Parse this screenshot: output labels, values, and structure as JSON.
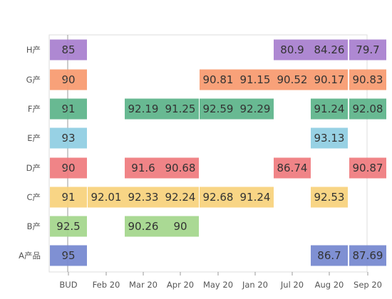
{
  "chart_data": {
    "type": "heatmap",
    "title": "",
    "xlabel": "",
    "ylabel": "",
    "x_categories": [
      "BUD",
      "Feb 20",
      "Mar 20",
      "Apr 20",
      "May 20",
      "Jan 20",
      "Jul 20",
      "Aug 20",
      "Sep 20"
    ],
    "y_categories": [
      "H产",
      "G产",
      "F产",
      "E产",
      "D产",
      "C产",
      "B产",
      "A产品"
    ],
    "row_colors": [
      "#a87fcf",
      "#f79a6f",
      "#5cb48a",
      "#8fcde2",
      "#ef7b7e",
      "#f7d27c",
      "#a4d68c",
      "#7588d0"
    ],
    "series": [
      {
        "row": "H产",
        "cells": [
          {
            "x": "BUD",
            "value": 85
          },
          {
            "x": "Jul 20",
            "value": 80.9
          },
          {
            "x": "Aug 20",
            "value": 84.26
          },
          {
            "x": "Sep 20",
            "value": 79.7
          }
        ]
      },
      {
        "row": "G产",
        "cells": [
          {
            "x": "BUD",
            "value": 90
          },
          {
            "x": "May 20",
            "value": 90.81
          },
          {
            "x": "Jan 20",
            "value": 91.15
          },
          {
            "x": "Jul 20",
            "value": 90.52
          },
          {
            "x": "Aug 20",
            "value": 90.17
          },
          {
            "x": "Sep 20",
            "value": 90.83
          }
        ]
      },
      {
        "row": "F产",
        "cells": [
          {
            "x": "BUD",
            "value": 91
          },
          {
            "x": "Mar 20",
            "value": 92.19
          },
          {
            "x": "Apr 20",
            "value": 91.25
          },
          {
            "x": "May 20",
            "value": 92.59
          },
          {
            "x": "Jan 20",
            "value": 92.29
          },
          {
            "x": "Aug 20",
            "value": 91.24
          },
          {
            "x": "Sep 20",
            "value": 92.08
          }
        ]
      },
      {
        "row": "E产",
        "cells": [
          {
            "x": "BUD",
            "value": 93
          },
          {
            "x": "Aug 20",
            "value": 93.13
          }
        ]
      },
      {
        "row": "D产",
        "cells": [
          {
            "x": "BUD",
            "value": 90
          },
          {
            "x": "Mar 20",
            "value": 91.6
          },
          {
            "x": "Apr 20",
            "value": 90.68
          },
          {
            "x": "Jul 20",
            "value": 86.74
          },
          {
            "x": "Sep 20",
            "value": 90.87
          }
        ]
      },
      {
        "row": "C产",
        "cells": [
          {
            "x": "BUD",
            "value": 91
          },
          {
            "x": "Feb 20",
            "value": 92.01
          },
          {
            "x": "Mar 20",
            "value": 92.33
          },
          {
            "x": "Apr 20",
            "value": 92.24
          },
          {
            "x": "May 20",
            "value": 92.68
          },
          {
            "x": "Jan 20",
            "value": 91.24
          },
          {
            "x": "Aug 20",
            "value": 92.53
          }
        ]
      },
      {
        "row": "B产",
        "cells": [
          {
            "x": "BUD",
            "value": 92.5
          },
          {
            "x": "Mar 20",
            "value": 90.26
          },
          {
            "x": "Apr 20",
            "value": 90
          }
        ]
      },
      {
        "row": "A产品",
        "cells": [
          {
            "x": "BUD",
            "value": 95
          },
          {
            "x": "Aug 20",
            "value": 86.7
          },
          {
            "x": "Sep 20",
            "value": 87.69
          }
        ]
      }
    ],
    "grid": false,
    "legend": "none"
  }
}
